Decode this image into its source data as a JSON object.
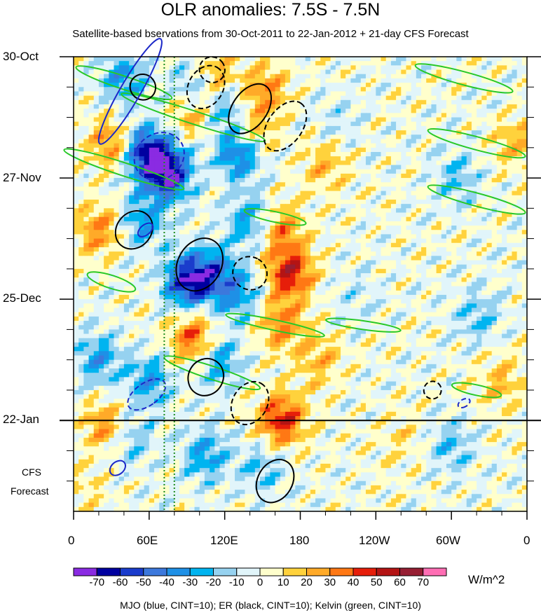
{
  "chart_data": {
    "type": "heatmap",
    "title": "OLR anomalies: 7.5S - 7.5N",
    "subtitle": "Satellite-based bservations from 30-Oct-2011 to 22-Jan-2012 + 21-day CFS Forecast",
    "x_tick_labels": [
      "0",
      "60E",
      "120E",
      "180",
      "120W",
      "60W",
      "0"
    ],
    "x_tick_lon": [
      0,
      60,
      120,
      180,
      240,
      300,
      360
    ],
    "x_range_lon": [
      0,
      360
    ],
    "y_tick_labels": [
      "30-Oct",
      "27-Nov",
      "25-Dec",
      "22-Jan"
    ],
    "y_tick_day": [
      0,
      28,
      56,
      84
    ],
    "y_range_day": [
      0,
      105
    ],
    "observation_end_day": 84,
    "forecast_label_line1": "CFS",
    "forecast_label_line2": "Forecast",
    "colorbar_levels": [
      -70,
      -60,
      -50,
      -40,
      -30,
      -20,
      -10,
      0,
      10,
      20,
      30,
      40,
      50,
      60,
      70
    ],
    "colorbar_tick_labels": [
      "-70",
      "-60",
      "-50",
      "-40",
      "-30",
      "-20",
      "-10",
      "0",
      "10",
      "20",
      "30",
      "40",
      "50",
      "60",
      "70"
    ],
    "colorbar_colors": [
      "#8a2be2",
      "#0000a0",
      "#1a3ccc",
      "#3c78dc",
      "#1e90e6",
      "#00b4f0",
      "#96d2f0",
      "#e1f5fa",
      "#ffffcc",
      "#ffd23c",
      "#ffaa28",
      "#ff7814",
      "#e61e0a",
      "#b41414",
      "#961e32",
      "#ff6eb4"
    ],
    "units": "W/m^2",
    "footer": "MJO (blue, CINT=10); ER (black, CINT=10); Kelvin (green, CINT=10)",
    "overlay_colors": {
      "mjo": "#1c28c8",
      "er": "#000000",
      "kelvin": "#28c828",
      "ref_lines": "#1e8c1e"
    },
    "reference_lines_lon": [
      72,
      80
    ],
    "anomaly_features": [
      {
        "lon": 40,
        "day": 5,
        "val": -30
      },
      {
        "lon": 58,
        "day": 22,
        "val": -60
      },
      {
        "lon": 75,
        "day": 27,
        "val": -70
      },
      {
        "lon": 55,
        "day": 38,
        "val": -30
      },
      {
        "lon": 95,
        "day": 8,
        "val": -40
      },
      {
        "lon": 120,
        "day": 12,
        "val": -30
      },
      {
        "lon": 132,
        "day": 22,
        "val": -50
      },
      {
        "lon": 140,
        "day": 38,
        "val": -30
      },
      {
        "lon": 90,
        "day": 52,
        "val": -60
      },
      {
        "lon": 110,
        "day": 50,
        "val": -40
      },
      {
        "lon": 130,
        "day": 55,
        "val": -30
      },
      {
        "lon": 115,
        "day": 70,
        "val": -30
      },
      {
        "lon": 60,
        "day": 75,
        "val": -30
      },
      {
        "lon": 20,
        "day": 70,
        "val": -30
      },
      {
        "lon": 45,
        "day": 88,
        "val": -20
      },
      {
        "lon": 105,
        "day": 92,
        "val": -30
      },
      {
        "lon": 150,
        "day": 95,
        "val": -20
      },
      {
        "lon": 305,
        "day": 28,
        "val": -20
      },
      {
        "lon": 320,
        "day": 60,
        "val": -20
      },
      {
        "lon": 300,
        "day": 90,
        "val": -20
      },
      {
        "lon": 225,
        "day": 55,
        "val": -10
      },
      {
        "lon": 210,
        "day": 15,
        "val": -10
      },
      {
        "lon": 30,
        "day": 20,
        "val": 30
      },
      {
        "lon": 20,
        "day": 40,
        "val": 30
      },
      {
        "lon": 95,
        "day": 12,
        "val": 40
      },
      {
        "lon": 112,
        "day": 5,
        "val": 30
      },
      {
        "lon": 152,
        "day": 8,
        "val": 30
      },
      {
        "lon": 140,
        "day": 18,
        "val": 30
      },
      {
        "lon": 165,
        "day": 40,
        "val": 30
      },
      {
        "lon": 172,
        "day": 50,
        "val": 50
      },
      {
        "lon": 165,
        "day": 62,
        "val": 30
      },
      {
        "lon": 165,
        "day": 84,
        "val": 50
      },
      {
        "lon": 95,
        "day": 65,
        "val": 40
      },
      {
        "lon": 25,
        "day": 85,
        "val": 30
      },
      {
        "lon": 200,
        "day": 25,
        "val": 20
      },
      {
        "lon": 195,
        "day": 70,
        "val": 20
      },
      {
        "lon": 260,
        "day": 88,
        "val": 10
      },
      {
        "lon": 350,
        "day": 20,
        "val": 20
      },
      {
        "lon": 340,
        "day": 75,
        "val": 20
      },
      {
        "lon": 10,
        "day": 100,
        "val": 10
      }
    ],
    "mjo_contours": [
      {
        "lon": 45,
        "day": 8,
        "a": 8,
        "b": 14,
        "angle": 30
      },
      {
        "lon": 68,
        "day": 23,
        "a": 18,
        "b": 6,
        "angle": 55
      },
      {
        "lon": 57,
        "day": 40,
        "a": 4,
        "b": 2,
        "angle": 50
      },
      {
        "lon": 58,
        "day": 78,
        "a": 9,
        "b": 5,
        "angle": 55
      },
      {
        "lon": 35,
        "day": 95,
        "a": 5,
        "b": 2,
        "angle": 50
      },
      {
        "lon": 310,
        "day": 80,
        "a": 3,
        "b": 1.5,
        "angle": 60
      }
    ],
    "er_contours": [
      {
        "lon": 55,
        "day": 7,
        "a": 10,
        "b": 3,
        "angle": -40
      },
      {
        "lon": 105,
        "day": 7,
        "a": 18,
        "b": 4,
        "angle": -60
      },
      {
        "lon": 140,
        "day": 12,
        "a": 22,
        "b": 4,
        "angle": -55
      },
      {
        "lon": 168,
        "day": 16,
        "a": 22,
        "b": 4,
        "angle": -55
      },
      {
        "lon": 100,
        "day": 48,
        "a": 22,
        "b": 5,
        "angle": -60
      },
      {
        "lon": 140,
        "day": 50,
        "a": 13,
        "b": 4,
        "angle": -60
      },
      {
        "lon": 105,
        "day": 74,
        "a": 15,
        "b": 4,
        "angle": -60
      },
      {
        "lon": 140,
        "day": 80,
        "a": 18,
        "b": 4,
        "angle": -60
      },
      {
        "lon": 160,
        "day": 98,
        "a": 18,
        "b": 4,
        "angle": -60
      },
      {
        "lon": 285,
        "day": 77,
        "a": 7,
        "b": 2,
        "angle": -50
      },
      {
        "lon": 48,
        "day": 40,
        "a": 16,
        "b": 4,
        "angle": -50
      },
      {
        "lon": 110,
        "day": 3,
        "a": 10,
        "b": 3,
        "angle": -40
      }
    ],
    "kelvin_contours": [
      {
        "lon": 40,
        "day": 6,
        "a": 40,
        "b": 1.5,
        "angle": 18
      },
      {
        "lon": 95,
        "day": 14,
        "a": 60,
        "b": 1.5,
        "angle": 18
      },
      {
        "lon": 40,
        "day": 26,
        "a": 50,
        "b": 1.5,
        "angle": 18
      },
      {
        "lon": 160,
        "day": 37,
        "a": 25,
        "b": 1.2,
        "angle": 12
      },
      {
        "lon": 30,
        "day": 52,
        "a": 20,
        "b": 1.5,
        "angle": 18
      },
      {
        "lon": 160,
        "day": 62,
        "a": 40,
        "b": 1.2,
        "angle": 12
      },
      {
        "lon": 110,
        "day": 73,
        "a": 40,
        "b": 1.5,
        "angle": 18
      },
      {
        "lon": 310,
        "day": 5,
        "a": 40,
        "b": 1.5,
        "angle": 15
      },
      {
        "lon": 320,
        "day": 20,
        "a": 40,
        "b": 1.5,
        "angle": 15
      },
      {
        "lon": 320,
        "day": 33,
        "a": 40,
        "b": 1.5,
        "angle": 15
      },
      {
        "lon": 320,
        "day": 77,
        "a": 20,
        "b": 1.2,
        "angle": 12
      },
      {
        "lon": 230,
        "day": 62,
        "a": 30,
        "b": 1,
        "angle": 8
      }
    ]
  }
}
